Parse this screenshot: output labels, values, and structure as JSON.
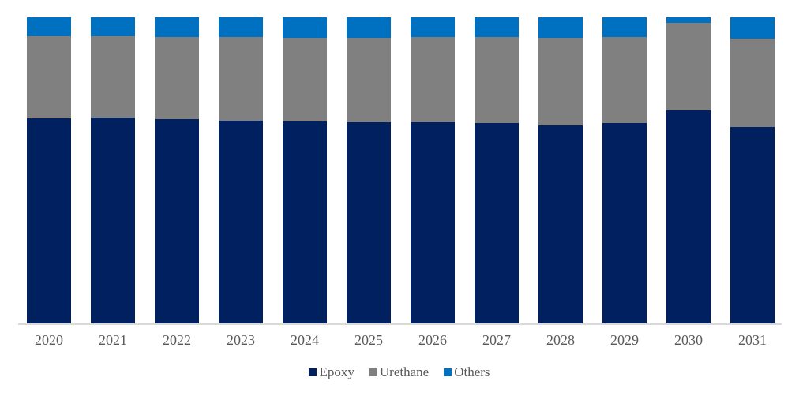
{
  "chart_data": {
    "type": "bar",
    "subtype": "stacked-100-percent-column",
    "title": "",
    "xlabel": "",
    "ylabel": "",
    "unit": "percent share (estimated from bar heights)",
    "ylim": [
      0,
      100
    ],
    "grid": false,
    "legend_position": "bottom-center",
    "background_color": "#FFFFFF",
    "axis_line_color": "#D9D9D9",
    "label_color": "#595959",
    "categories": [
      "2020",
      "2021",
      "2022",
      "2023",
      "2024",
      "2025",
      "2026",
      "2027",
      "2028",
      "2029",
      "2030",
      "2031"
    ],
    "series": [
      {
        "name": "Epoxy",
        "color": "#002060",
        "values": [
          67.0,
          67.3,
          66.8,
          66.2,
          66.0,
          65.7,
          65.7,
          65.5,
          64.7,
          65.5,
          69.6,
          64.2
        ]
      },
      {
        "name": "Urethane",
        "color": "#808080",
        "values": [
          26.8,
          26.5,
          26.8,
          27.3,
          27.3,
          27.6,
          27.8,
          28.1,
          28.6,
          28.1,
          28.6,
          28.9
        ]
      },
      {
        "name": "Others",
        "color": "#0070C0",
        "values": [
          6.2,
          6.2,
          6.4,
          6.4,
          6.7,
          6.7,
          6.4,
          6.4,
          6.7,
          6.4,
          1.8,
          7.0
        ]
      }
    ]
  }
}
